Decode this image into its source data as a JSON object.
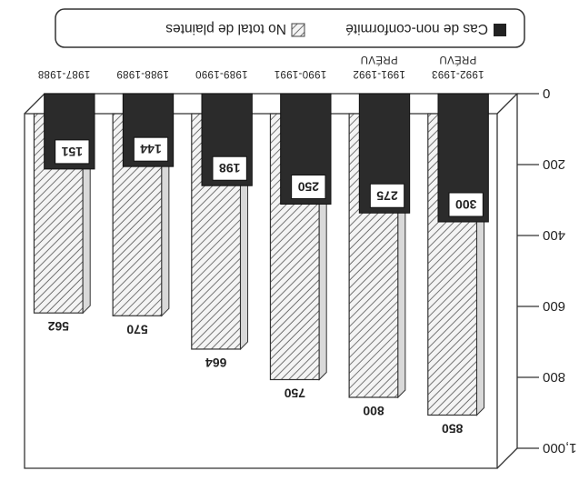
{
  "chart_data": {
    "type": "bar",
    "title": "",
    "xlabel": "",
    "ylabel": "",
    "categories": [
      [
        "1987-1988",
        ""
      ],
      [
        "1988-1989",
        ""
      ],
      [
        "1989-1990",
        ""
      ],
      [
        "1990-1991",
        ""
      ],
      [
        "1991-1992",
        "PRÉVU"
      ],
      [
        "1992-1993",
        "PRÉVU"
      ]
    ],
    "series": [
      {
        "name": "Cas de non-conformité",
        "values": [
          151,
          144,
          198,
          250,
          275,
          300
        ],
        "pattern": "solid-dark",
        "color": "#2b2b2b"
      },
      {
        "name": "No total de plaintes",
        "values": [
          562,
          570,
          664,
          750,
          800,
          850
        ],
        "pattern": "diagonal-hatch",
        "color": "#8a8a8a"
      }
    ],
    "yticks": [
      "0",
      "200",
      "400",
      "600",
      "800",
      "1,000"
    ],
    "ylim": [
      0,
      1000
    ],
    "grid": false,
    "legend_position": "top",
    "orientation": "printed upside-down"
  }
}
